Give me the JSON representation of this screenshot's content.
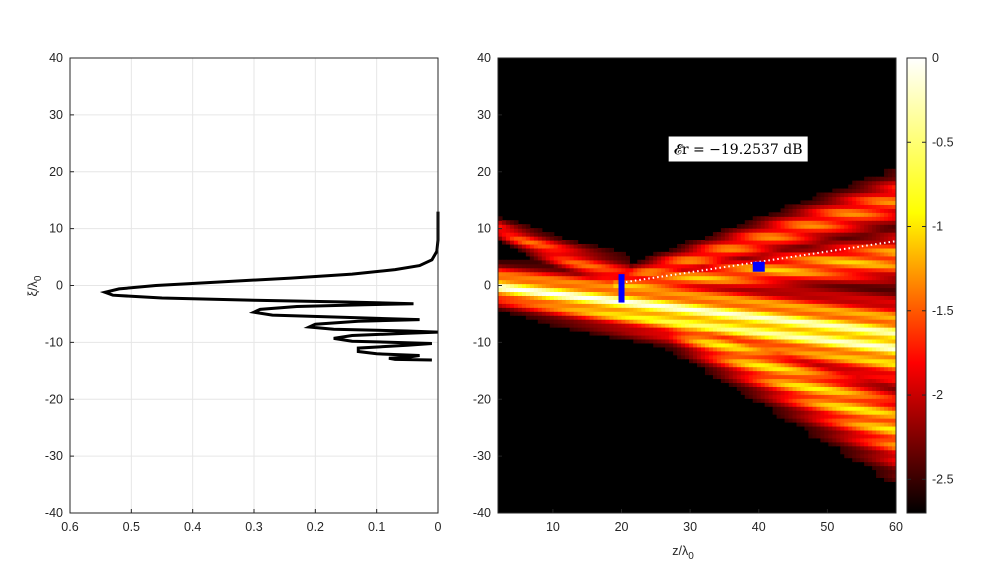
{
  "chart_data": [
    {
      "type": "line",
      "ylabel_main": "ξ/λ",
      "ylabel_sub": "0",
      "xlim": [
        0.6,
        0
      ],
      "x_reversed": true,
      "ylim": [
        -40,
        40
      ],
      "xticks": [
        0.6,
        0.5,
        0.4,
        0.3,
        0.2,
        0.1,
        0
      ],
      "xtick_labels": [
        "0.6",
        "0.5",
        "0.4",
        "0.3",
        "0.2",
        "0.1",
        "0"
      ],
      "yticks": [
        -40,
        -30,
        -20,
        -10,
        0,
        10,
        20,
        30,
        40
      ],
      "ytick_labels": [
        "-40",
        "-30",
        "-20",
        "-10",
        "0",
        "10",
        "20",
        "30",
        "40"
      ],
      "grid": true,
      "series": [
        {
          "color": "#000000",
          "points": [
            [
              0.0,
              13
            ],
            [
              0.0,
              8
            ],
            [
              0.002,
              6
            ],
            [
              0.01,
              4.5
            ],
            [
              0.03,
              3.5
            ],
            [
              0.07,
              2.8
            ],
            [
              0.14,
              2.0
            ],
            [
              0.24,
              1.3
            ],
            [
              0.36,
              0.6
            ],
            [
              0.46,
              0.0
            ],
            [
              0.52,
              -0.6
            ],
            [
              0.543,
              -1.2
            ],
            [
              0.53,
              -1.7
            ],
            [
              0.45,
              -2.2
            ],
            [
              0.3,
              -2.6
            ],
            [
              0.15,
              -2.9
            ],
            [
              0.04,
              -3.2
            ],
            [
              0.12,
              -3.4
            ],
            [
              0.23,
              -3.7
            ],
            [
              0.29,
              -4.2
            ],
            [
              0.3,
              -4.7
            ],
            [
              0.27,
              -5.2
            ],
            [
              0.15,
              -5.6
            ],
            [
              0.03,
              -6.0
            ],
            [
              0.13,
              -6.3
            ],
            [
              0.2,
              -6.8
            ],
            [
              0.21,
              -7.3
            ],
            [
              0.17,
              -7.7
            ],
            [
              0.05,
              -8.0
            ],
            [
              0.0,
              -8.2
            ],
            [
              0.05,
              -8.4
            ],
            [
              0.14,
              -8.8
            ],
            [
              0.17,
              -9.3
            ],
            [
              0.14,
              -9.8
            ],
            [
              0.01,
              -10.2
            ],
            [
              0.05,
              -10.5
            ],
            [
              0.13,
              -11.0
            ],
            [
              0.13,
              -11.6
            ],
            [
              0.1,
              -12.0
            ],
            [
              0.03,
              -12.3
            ],
            [
              0.05,
              -12.6
            ],
            [
              0.08,
              -12.8
            ],
            [
              0.07,
              -13.0
            ],
            [
              0.01,
              -13.1
            ]
          ]
        }
      ]
    },
    {
      "type": "heatmap",
      "xlabel_main": "z/λ",
      "xlabel_sub": "0",
      "xlim": [
        2,
        60
      ],
      "ylim": [
        -40,
        40
      ],
      "xticks": [
        10,
        20,
        30,
        40,
        50,
        60
      ],
      "xtick_labels": [
        "10",
        "20",
        "30",
        "40",
        "50",
        "60"
      ],
      "yticks": [
        -40,
        -30,
        -20,
        -10,
        0,
        10,
        20,
        30,
        40
      ],
      "ytick_labels": [
        "-40",
        "-30",
        "-20",
        "-10",
        "0",
        "10",
        "20",
        "30",
        "40"
      ],
      "colormap": "hot",
      "colorbar": {
        "range": [
          -2.7,
          0
        ],
        "ticks": [
          0,
          -0.5,
          -1,
          -1.5,
          -2,
          -2.5
        ],
        "tick_labels": [
          "0",
          "-0.5",
          "-1",
          "-1.5",
          "-2",
          "-2.5"
        ]
      },
      "annotation": {
        "text": "𝓔r = −19.2537 dB",
        "x": 37,
        "y": 24
      },
      "source_element": {
        "z": 20,
        "xi_min": -3,
        "xi_max": 2,
        "color": "#0000ff"
      },
      "target_marker": {
        "z": 40,
        "xi": 3.3,
        "color": "#0000ff"
      },
      "dotted_ray": {
        "z0": 20,
        "xi0": 0.5,
        "z1": 60,
        "xi1": 7.8,
        "color": "#ffffff"
      },
      "beams": [
        {
          "z_start": 2,
          "xi_start": 0,
          "z_end": 60,
          "xi_end": -10,
          "width": 5,
          "strength": 1.0
        },
        {
          "z_start": 20,
          "xi_start": -2,
          "z_end": 60,
          "xi_end": -25,
          "width": 5,
          "strength": 0.75
        },
        {
          "z_start": 20,
          "xi_start": 0,
          "z_end": 60,
          "xi_end": 5,
          "width": 3,
          "strength": 0.7
        },
        {
          "z_start": 20,
          "xi_start": 1,
          "z_end": 60,
          "xi_end": 15,
          "width": 3,
          "strength": 0.6
        },
        {
          "z_start": 2,
          "xi_start": 10,
          "z_end": 20,
          "xi_end": 1,
          "width": 2.5,
          "strength": 0.55
        }
      ]
    }
  ]
}
